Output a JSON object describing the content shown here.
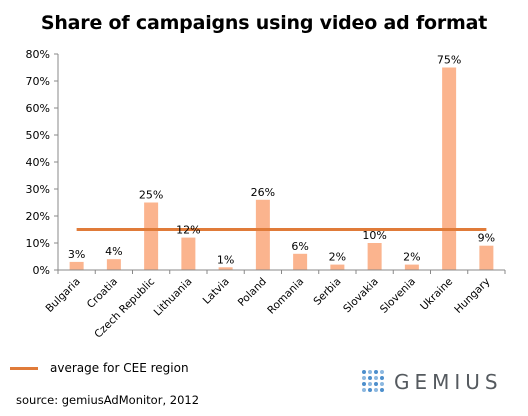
{
  "chart_data": {
    "type": "bar",
    "title": "Share of campaigns using video ad format",
    "categories": [
      "Bulgaria",
      "Croatia",
      "Czech Republic",
      "Lithuania",
      "Latvia",
      "Poland",
      "Romania",
      "Serbia",
      "Slovakia",
      "Slovenia",
      "Ukraine",
      "Hungary"
    ],
    "values": [
      3,
      4,
      25,
      12,
      1,
      26,
      6,
      2,
      10,
      2,
      75,
      9
    ],
    "data_labels": [
      "3%",
      "4%",
      "25%",
      "12%",
      "1%",
      "26%",
      "6%",
      "2%",
      "10%",
      "2%",
      "75%",
      "9%"
    ],
    "ylim": [
      0,
      80
    ],
    "yticks": [
      "0%",
      "10%",
      "20%",
      "30%",
      "40%",
      "50%",
      "60%",
      "70%",
      "80%"
    ],
    "grid": false,
    "bar_color": "#fbb48e",
    "reference_line": {
      "name": "average for CEE region",
      "value": 15,
      "color": "#e07b39"
    },
    "legend_position": "bottom-left"
  },
  "footer": {
    "source": "source: gemiusAdMonitor, 2012",
    "logo_text": "GEMIUS",
    "logo_colors": [
      "#4d8fcc",
      "#8cb8e0"
    ]
  }
}
